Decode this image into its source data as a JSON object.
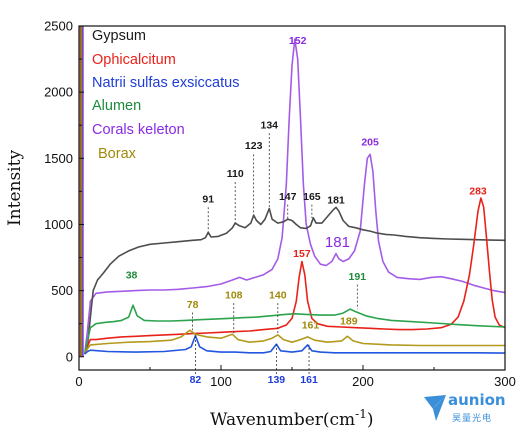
{
  "chart_data": {
    "type": "line",
    "xlabel": "Wavenumber(cm",
    "xlabel_sup": "-1",
    "xlabel_close": ")",
    "ylabel": "Intensity",
    "xlim": [
      0,
      300
    ],
    "ylim": [
      -100,
      2500
    ],
    "xticks": [
      0,
      100,
      200,
      300
    ],
    "yticks": [
      0,
      500,
      1000,
      1500,
      2000,
      2500
    ],
    "grid": false,
    "legend_position": "top-left",
    "series": [
      {
        "name": "Gypsum",
        "color": "#1a1a1a",
        "stroke": "#4d4d4d",
        "points": [
          [
            4,
            20
          ],
          [
            6,
            80
          ],
          [
            8,
            300
          ],
          [
            10,
            500
          ],
          [
            13,
            580
          ],
          [
            17,
            630
          ],
          [
            22,
            700
          ],
          [
            28,
            760
          ],
          [
            35,
            800
          ],
          [
            42,
            830
          ],
          [
            50,
            850
          ],
          [
            60,
            860
          ],
          [
            70,
            870
          ],
          [
            80,
            880
          ],
          [
            86,
            885
          ],
          [
            89,
            900
          ],
          [
            91,
            940
          ],
          [
            93,
            905
          ],
          [
            98,
            910
          ],
          [
            104,
            935
          ],
          [
            108,
            975
          ],
          [
            110,
            1010
          ],
          [
            113,
            990
          ],
          [
            117,
            975
          ],
          [
            121,
            1010
          ],
          [
            123,
            1070
          ],
          [
            125,
            1030
          ],
          [
            128,
            1000
          ],
          [
            131,
            1040
          ],
          [
            134,
            1120
          ],
          [
            136,
            1040
          ],
          [
            140,
            1010
          ],
          [
            144,
            1020
          ],
          [
            147,
            1040
          ],
          [
            150,
            1030
          ],
          [
            153,
            1000
          ],
          [
            156,
            975
          ],
          [
            160,
            970
          ],
          [
            163,
            990
          ],
          [
            165,
            1050
          ],
          [
            167,
            1010
          ],
          [
            171,
            1010
          ],
          [
            175,
            1060
          ],
          [
            179,
            1110
          ],
          [
            181,
            1130
          ],
          [
            183,
            1100
          ],
          [
            186,
            1030
          ],
          [
            190,
            985
          ],
          [
            195,
            975
          ],
          [
            200,
            960
          ],
          [
            205,
            950
          ],
          [
            210,
            935
          ],
          [
            216,
            925
          ],
          [
            222,
            920
          ],
          [
            230,
            910
          ],
          [
            240,
            900
          ],
          [
            250,
            895
          ],
          [
            260,
            890
          ],
          [
            270,
            888
          ],
          [
            280,
            885
          ],
          [
            290,
            882
          ],
          [
            300,
            880
          ]
        ]
      },
      {
        "name": "Ophicalcitum",
        "color": "#e8221a",
        "stroke": "#e8221a",
        "points": [
          [
            4,
            20
          ],
          [
            6,
            80
          ],
          [
            8,
            130
          ],
          [
            12,
            130
          ],
          [
            20,
            140
          ],
          [
            30,
            150
          ],
          [
            40,
            155
          ],
          [
            50,
            160
          ],
          [
            60,
            165
          ],
          [
            70,
            170
          ],
          [
            80,
            175
          ],
          [
            90,
            180
          ],
          [
            100,
            185
          ],
          [
            110,
            190
          ],
          [
            120,
            195
          ],
          [
            130,
            205
          ],
          [
            140,
            215
          ],
          [
            146,
            240
          ],
          [
            150,
            290
          ],
          [
            153,
            420
          ],
          [
            155,
            600
          ],
          [
            157,
            720
          ],
          [
            159,
            620
          ],
          [
            161,
            420
          ],
          [
            164,
            290
          ],
          [
            168,
            250
          ],
          [
            175,
            230
          ],
          [
            185,
            225
          ],
          [
            195,
            220
          ],
          [
            205,
            215
          ],
          [
            215,
            210
          ],
          [
            225,
            205
          ],
          [
            235,
            205
          ],
          [
            245,
            210
          ],
          [
            255,
            220
          ],
          [
            262,
            245
          ],
          [
            267,
            300
          ],
          [
            271,
            420
          ],
          [
            275,
            620
          ],
          [
            278,
            850
          ],
          [
            281,
            1100
          ],
          [
            283,
            1200
          ],
          [
            285,
            1130
          ],
          [
            287,
            900
          ],
          [
            289,
            650
          ],
          [
            291,
            430
          ],
          [
            293,
            300
          ],
          [
            296,
            240
          ],
          [
            300,
            220
          ]
        ]
      },
      {
        "name": "Natrii sulfas exsiccatus",
        "color": "#1f3dd6",
        "stroke": "#2255e0",
        "points": [
          [
            4,
            20
          ],
          [
            6,
            40
          ],
          [
            8,
            50
          ],
          [
            20,
            40
          ],
          [
            40,
            35
          ],
          [
            60,
            40
          ],
          [
            75,
            55
          ],
          [
            79,
            75
          ],
          [
            82,
            160
          ],
          [
            85,
            75
          ],
          [
            90,
            45
          ],
          [
            100,
            35
          ],
          [
            110,
            35
          ],
          [
            120,
            30
          ],
          [
            130,
            30
          ],
          [
            135,
            40
          ],
          [
            139,
            95
          ],
          [
            142,
            45
          ],
          [
            150,
            35
          ],
          [
            157,
            45
          ],
          [
            161,
            90
          ],
          [
            164,
            45
          ],
          [
            170,
            35
          ],
          [
            180,
            30
          ],
          [
            200,
            30
          ],
          [
            220,
            30
          ],
          [
            240,
            30
          ],
          [
            260,
            30
          ],
          [
            280,
            30
          ],
          [
            300,
            28
          ]
        ]
      },
      {
        "name": "Alumen",
        "color": "#1f8a3a",
        "stroke": "#2da34e",
        "points": [
          [
            4,
            20
          ],
          [
            6,
            120
          ],
          [
            8,
            220
          ],
          [
            12,
            250
          ],
          [
            18,
            260
          ],
          [
            24,
            265
          ],
          [
            30,
            275
          ],
          [
            35,
            300
          ],
          [
            38,
            390
          ],
          [
            41,
            310
          ],
          [
            46,
            275
          ],
          [
            55,
            270
          ],
          [
            65,
            270
          ],
          [
            75,
            275
          ],
          [
            85,
            280
          ],
          [
            95,
            285
          ],
          [
            105,
            290
          ],
          [
            115,
            295
          ],
          [
            125,
            300
          ],
          [
            135,
            310
          ],
          [
            145,
            320
          ],
          [
            152,
            325
          ],
          [
            160,
            320
          ],
          [
            170,
            315
          ],
          [
            180,
            315
          ],
          [
            186,
            330
          ],
          [
            191,
            360
          ],
          [
            195,
            340
          ],
          [
            202,
            310
          ],
          [
            210,
            290
          ],
          [
            220,
            275
          ],
          [
            235,
            265
          ],
          [
            250,
            255
          ],
          [
            265,
            245
          ],
          [
            280,
            235
          ],
          [
            300,
            225
          ]
        ]
      },
      {
        "name": "Corals keleton",
        "color": "#8a2be2",
        "stroke": "#a45ce8",
        "points": [
          [
            4,
            20
          ],
          [
            6,
            200
          ],
          [
            8,
            420
          ],
          [
            12,
            480
          ],
          [
            20,
            490
          ],
          [
            30,
            495
          ],
          [
            40,
            500
          ],
          [
            50,
            505
          ],
          [
            60,
            505
          ],
          [
            70,
            510
          ],
          [
            80,
            520
          ],
          [
            90,
            530
          ],
          [
            100,
            550
          ],
          [
            108,
            580
          ],
          [
            113,
            600
          ],
          [
            118,
            580
          ],
          [
            124,
            600
          ],
          [
            130,
            620
          ],
          [
            136,
            660
          ],
          [
            140,
            740
          ],
          [
            143,
            900
          ],
          [
            146,
            1300
          ],
          [
            148,
            1800
          ],
          [
            150,
            2200
          ],
          [
            152,
            2400
          ],
          [
            154,
            2250
          ],
          [
            156,
            1800
          ],
          [
            158,
            1300
          ],
          [
            160,
            1000
          ],
          [
            163,
            850
          ],
          [
            166,
            760
          ],
          [
            170,
            700
          ],
          [
            174,
            690
          ],
          [
            178,
            720
          ],
          [
            181,
            780
          ],
          [
            183,
            740
          ],
          [
            186,
            720
          ],
          [
            190,
            740
          ],
          [
            194,
            800
          ],
          [
            198,
            950
          ],
          [
            201,
            1300
          ],
          [
            203,
            1500
          ],
          [
            205,
            1530
          ],
          [
            207,
            1400
          ],
          [
            209,
            1100
          ],
          [
            211,
            870
          ],
          [
            214,
            720
          ],
          [
            218,
            640
          ],
          [
            224,
            600
          ],
          [
            232,
            590
          ],
          [
            240,
            585
          ],
          [
            248,
            600
          ],
          [
            255,
            605
          ],
          [
            262,
            590
          ],
          [
            270,
            570
          ],
          [
            278,
            540
          ],
          [
            285,
            520
          ],
          [
            292,
            500
          ],
          [
            300,
            485
          ]
        ]
      },
      {
        "name": "Borax",
        "color": "#a08a0a",
        "stroke": "#b39a1c",
        "points": [
          [
            4,
            20
          ],
          [
            6,
            60
          ],
          [
            8,
            90
          ],
          [
            20,
            100
          ],
          [
            35,
            110
          ],
          [
            50,
            115
          ],
          [
            65,
            125
          ],
          [
            72,
            150
          ],
          [
            78,
            200
          ],
          [
            82,
            170
          ],
          [
            90,
            150
          ],
          [
            100,
            140
          ],
          [
            108,
            170
          ],
          [
            112,
            130
          ],
          [
            120,
            110
          ],
          [
            130,
            120
          ],
          [
            136,
            140
          ],
          [
            140,
            165
          ],
          [
            144,
            130
          ],
          [
            150,
            110
          ],
          [
            156,
            130
          ],
          [
            161,
            150
          ],
          [
            166,
            125
          ],
          [
            175,
            110
          ],
          [
            185,
            120
          ],
          [
            189,
            155
          ],
          [
            193,
            120
          ],
          [
            200,
            100
          ],
          [
            220,
            90
          ],
          [
            240,
            85
          ],
          [
            260,
            85
          ],
          [
            280,
            85
          ],
          [
            300,
            85
          ]
        ]
      }
    ],
    "peak_labels": [
      {
        "text": "91",
        "x": 91,
        "y": 1165,
        "color": "#1a1a1a",
        "line_from": 1130,
        "line_to": 940
      },
      {
        "text": "110",
        "x": 110,
        "y": 1360,
        "color": "#1a1a1a",
        "line_from": 1320,
        "line_to": 1010
      },
      {
        "text": "123",
        "x": 123,
        "y": 1570,
        "color": "#1a1a1a",
        "line_from": 1530,
        "line_to": 1070
      },
      {
        "text": "134",
        "x": 134,
        "y": 1725,
        "color": "#1a1a1a",
        "line_from": 1690,
        "line_to": 1120
      },
      {
        "text": "147",
        "x": 147,
        "y": 1185,
        "color": "#1a1a1a",
        "line_from": 1150,
        "line_to": 1040
      },
      {
        "text": "165",
        "x": 164,
        "y": 1185,
        "color": "#1a1a1a",
        "line_from": 1150,
        "line_to": 1050
      },
      {
        "text": "181",
        "x": 181,
        "y": 1160,
        "color": "#1a1a1a"
      },
      {
        "text": "152",
        "x": 154,
        "y": 2365,
        "color": "#8a2be2"
      },
      {
        "text": "205",
        "x": 205,
        "y": 1595,
        "color": "#8a2be2"
      },
      {
        "text": "181",
        "x": 182,
        "y": 830,
        "color": "#8a2be2",
        "large": true
      },
      {
        "text": "283",
        "x": 281,
        "y": 1225,
        "color": "#e8221a"
      },
      {
        "text": "157",
        "x": 157,
        "y": 755,
        "color": "#e8221a"
      },
      {
        "text": "38",
        "x": 37,
        "y": 590,
        "color": "#1f8a3a"
      },
      {
        "text": "191",
        "x": 196,
        "y": 580,
        "color": "#1f8a3a",
        "line_from": 545,
        "line_to": 360
      },
      {
        "text": "78",
        "x": 80,
        "y": 370,
        "color": "#a08a0a",
        "line_from": 335,
        "line_to": 200
      },
      {
        "text": "108",
        "x": 109,
        "y": 440,
        "color": "#a08a0a",
        "line_from": 405,
        "line_to": 170
      },
      {
        "text": "140",
        "x": 140,
        "y": 440,
        "color": "#a08a0a",
        "line_from": 405,
        "line_to": 165
      },
      {
        "text": "161",
        "x": 163,
        "y": 215,
        "color": "#a08a0a"
      },
      {
        "text": "189",
        "x": 190,
        "y": 245,
        "color": "#a08a0a"
      },
      {
        "text": "82",
        "x": 82,
        "y": -200,
        "color": "#1f3dd6",
        "line_from": -130,
        "line_to": 160
      },
      {
        "text": "139",
        "x": 139,
        "y": -200,
        "color": "#1f3dd6",
        "line_from": -130,
        "line_to": 95
      },
      {
        "text": "161",
        "x": 162,
        "y": -200,
        "color": "#1f3dd6",
        "line_from": -130,
        "line_to": 90
      }
    ]
  },
  "watermark": {
    "brand": "aunion",
    "brand_cn": "昊量光电",
    "color": "#3b8fd9"
  }
}
